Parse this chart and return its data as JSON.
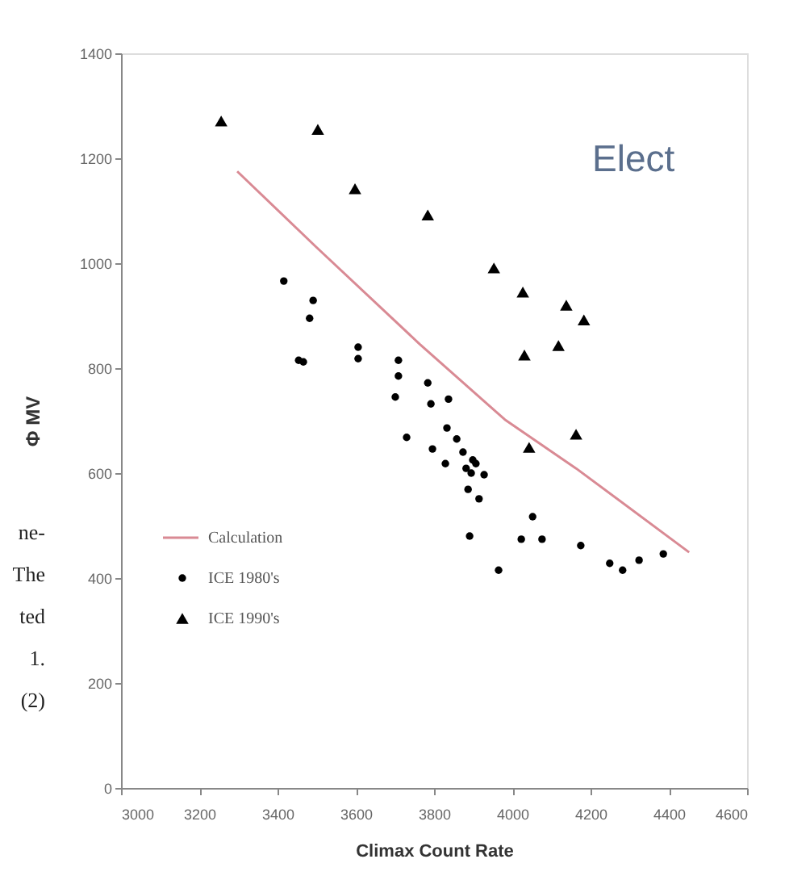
{
  "chart_data": {
    "type": "scatter",
    "xlabel": "Climax Count Rate",
    "ylabel": "Φ MV",
    "xlim": [
      3000,
      4600
    ],
    "xticks": [
      3000,
      3200,
      3400,
      3600,
      3800,
      4000,
      4200,
      4400,
      4600
    ],
    "ylim": [
      0,
      1400
    ],
    "yticks": [
      0,
      200,
      400,
      600,
      800,
      1000,
      1200,
      1400
    ],
    "grid": false,
    "legend": "bottom left",
    "annotations": [
      "Elect",
      "ne-",
      "The",
      "ted",
      "1.",
      "(2)"
    ],
    "series": [
      {
        "name": "Calculation",
        "type": "line",
        "line_style": "solid",
        "marker": "none",
        "color": "#d98a94",
        "x": [
          3297,
          3500,
          3763,
          3981,
          4163,
          4452
        ],
        "values": [
          1175,
          1030,
          846,
          702,
          609,
          449
        ]
      },
      {
        "name": "ICE 1980's",
        "type": "scatter",
        "marker": "circle",
        "color": "#000000",
        "x": [
          3416,
          3491,
          3482,
          3454,
          3466,
          3606,
          3606,
          3709,
          3709,
          3701,
          3784,
          3792,
          3837,
          3833,
          3730,
          3796,
          3858,
          3829,
          3874,
          3899,
          3882,
          3907,
          3895,
          3928,
          3887,
          3915,
          3891,
          3965,
          4023,
          4052,
          4076,
          4175,
          4249,
          4282,
          4324,
          4386
        ],
        "values": [
          966,
          929,
          895,
          815,
          812,
          840,
          818,
          815,
          785,
          745,
          772,
          732,
          741,
          686,
          668,
          646,
          665,
          618,
          640,
          625,
          609,
          618,
          600,
          597,
          569,
          551,
          480,
          415,
          474,
          517,
          474,
          462,
          428,
          415,
          434,
          446
        ]
      },
      {
        "name": "ICE 1990's",
        "type": "scatter",
        "marker": "triangle",
        "color": "#000000",
        "x": [
          3256,
          3503,
          3598,
          3784,
          3953,
          4027,
          4138,
          4183,
          4031,
          4118,
          4043,
          4163
        ],
        "values": [
          1271,
          1255,
          1142,
          1092,
          991,
          945,
          920,
          892,
          825,
          843,
          649,
          674
        ]
      }
    ]
  }
}
